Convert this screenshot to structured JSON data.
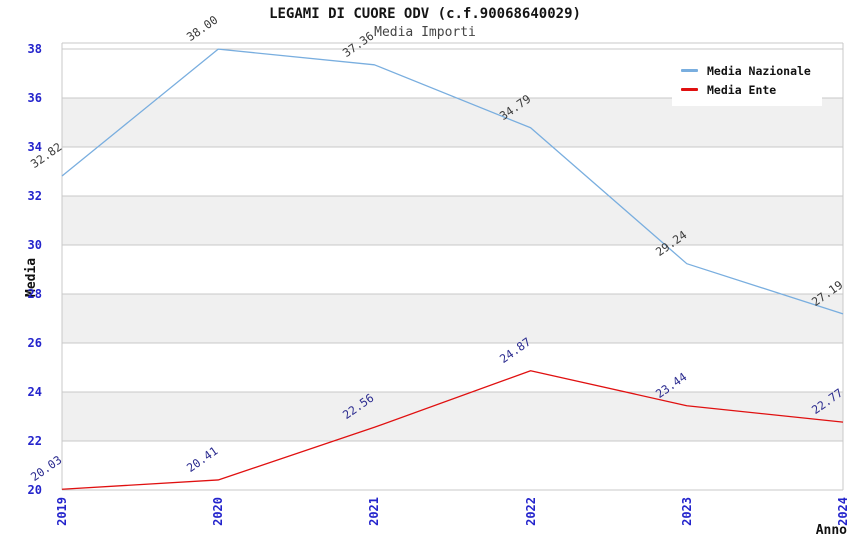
{
  "header": {
    "title": "LEGAMI DI CUORE ODV (c.f.90068640029)",
    "subtitle": "Media Importi"
  },
  "legend": {
    "position": "top-right",
    "items": [
      {
        "label": "Media Nazionale",
        "color": "#79AEDF"
      },
      {
        "label": "Media Ente",
        "color": "#E01010"
      }
    ]
  },
  "axes": {
    "y_label": "Media",
    "x_label": "Anno",
    "y_ticks": [
      20,
      22,
      24,
      26,
      28,
      30,
      32,
      34,
      36,
      38
    ],
    "x_ticks": [
      "2019",
      "2020",
      "2021",
      "2022",
      "2023",
      "2024"
    ],
    "tick_color": "#2424CC"
  },
  "chart_data": {
    "type": "line",
    "title": "LEGAMI DI CUORE ODV (c.f.90068640029)",
    "subtitle": "Media Importi",
    "xlabel": "Anno",
    "ylabel": "Media",
    "x": [
      "2019",
      "2020",
      "2021",
      "2022",
      "2023",
      "2024"
    ],
    "series": [
      {
        "name": "Media Nazionale",
        "color": "#79AEDF",
        "label_color": "#3A3A3A",
        "values": [
          32.82,
          38.0,
          37.36,
          34.79,
          29.24,
          27.19
        ]
      },
      {
        "name": "Media Ente",
        "color": "#E01010",
        "label_color": "#2B2B8F",
        "values": [
          20.03,
          20.41,
          22.56,
          24.87,
          23.44,
          22.77
        ]
      }
    ],
    "ylim": [
      20,
      38.25
    ],
    "grid": "horizontal",
    "band_fill": "#F0F0F0",
    "gridline_color": "#C9C9C9",
    "legend_position": "top-right",
    "value_label_format": "0.00"
  }
}
